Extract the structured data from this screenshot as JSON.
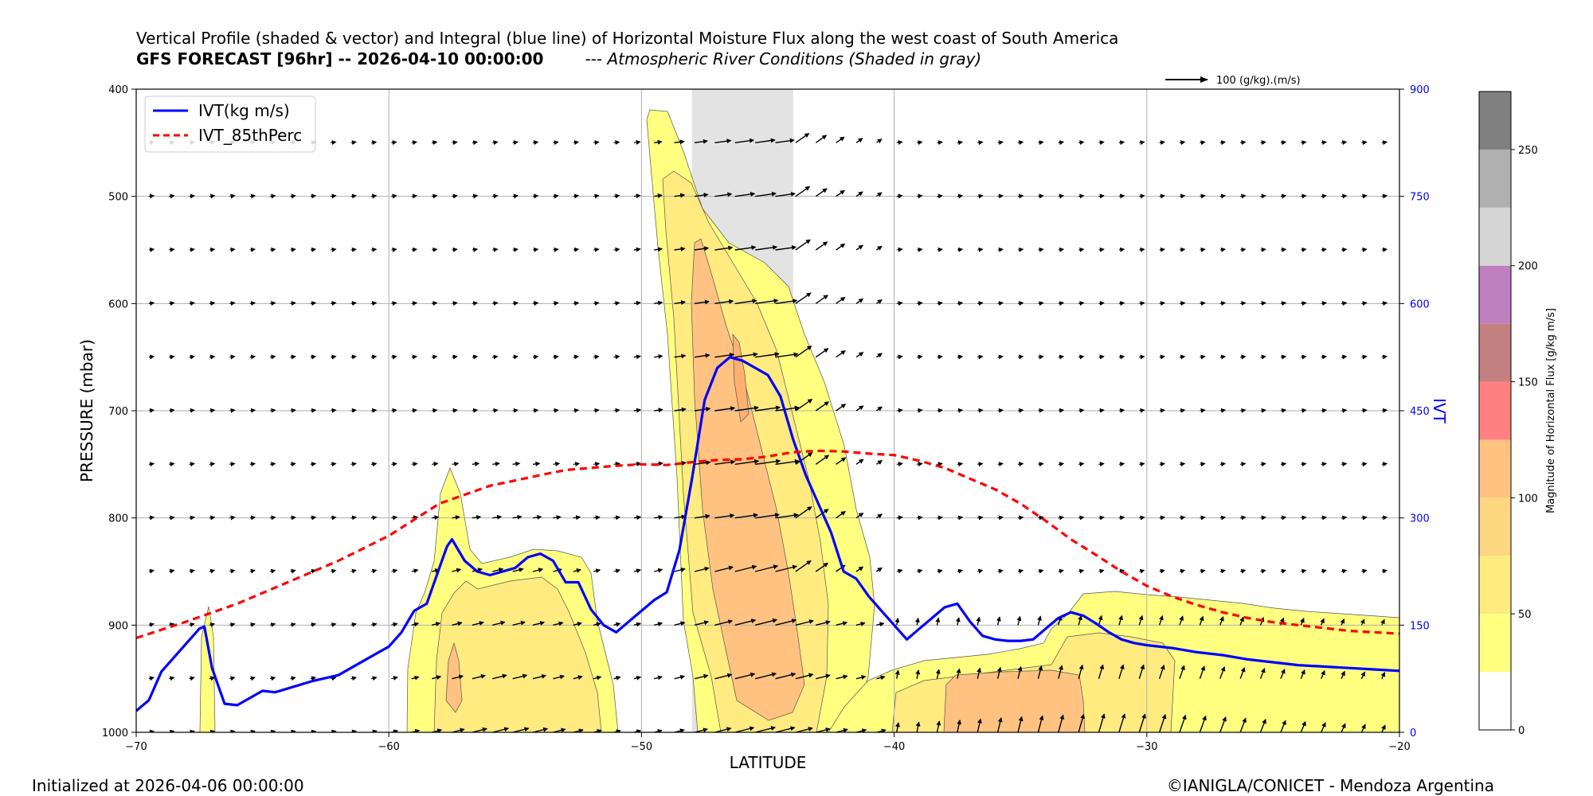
{
  "header": {
    "title_line1": "Vertical Profile (shaded & vector) and Integral (blue line) of Horizontal Moisture Flux along the west coast of South America",
    "forecast_label": "GFS FORECAST [96hr] -- 2026-04-10 00:00:00",
    "ar_note": "--- Atmospheric River Conditions (Shaded in gray)"
  },
  "footer": {
    "initialized": "Initialized at 2026-04-06 00:00:00",
    "credit": "©IANIGLA/CONICET - Mendoza Argentina"
  },
  "chart_data": {
    "type": "line",
    "xlabel": "LATITUDE",
    "ylabel": "PRESSURE (mbar)",
    "y2label": "IVT",
    "xlim": [
      -70,
      -20
    ],
    "ylim": [
      1000,
      400
    ],
    "y2lim": [
      0,
      900
    ],
    "xticks": [
      -70,
      -60,
      -50,
      -40,
      -30,
      -20
    ],
    "yticks": [
      400,
      500,
      600,
      700,
      800,
      900,
      1000
    ],
    "y2ticks": [
      0,
      150,
      300,
      450,
      600,
      750,
      900
    ],
    "grid": true,
    "legend_position": "upper-left",
    "ar_band": [
      -48,
      -44
    ],
    "vector_key": "100 (g/kg).(m/s)",
    "colorbar": {
      "label": "Magnitude of Horizontal Flux [g/kg m/s]",
      "bounds": [
        0,
        25,
        50,
        75,
        100,
        125,
        150,
        175,
        200,
        225,
        250,
        275
      ],
      "colors": [
        "#ffffff",
        "#ffff80",
        "#ffeb80",
        "#ffd680",
        "#ffc280",
        "#ff8080",
        "#c48080",
        "#c080c0",
        "#d4d4d4",
        "#b0b0b0",
        "#808080"
      ],
      "ticks": [
        0,
        50,
        100,
        150,
        200,
        250
      ]
    },
    "series": [
      {
        "name": "IVT(kg m/s)",
        "color": "#0000ff",
        "style": "solid",
        "x": [
          -70,
          -69.5,
          -69,
          -68,
          -67.5,
          -67.3,
          -67,
          -66.5,
          -66,
          -65,
          -64.5,
          -63,
          -62,
          -61,
          -60.5,
          -60,
          -59.5,
          -59,
          -58.5,
          -58,
          -57.7,
          -57.5,
          -57,
          -56.5,
          -56,
          -55,
          -54.5,
          -54,
          -53.5,
          -53,
          -52.5,
          -52,
          -51.5,
          -51,
          -50.5,
          -50,
          -49.5,
          -49,
          -48.5,
          -48,
          -47.5,
          -47,
          -46.5,
          -46,
          -45.5,
          -45,
          -44.5,
          -44,
          -43.5,
          -43,
          -42.5,
          -42,
          -41.5,
          -41,
          -40.5,
          -40,
          -39.5,
          -39,
          -38.5,
          -38,
          -37.5,
          -37,
          -36.5,
          -36,
          -35.5,
          -35,
          -34.5,
          -34,
          -33.5,
          -33,
          -32.5,
          -32,
          -31.5,
          -31,
          -30.5,
          -30,
          -29,
          -28,
          -27,
          -26,
          -25,
          -24,
          -23,
          -22,
          -21,
          -20
        ],
        "values": [
          30,
          45,
          85,
          125,
          145,
          148,
          90,
          40,
          38,
          58,
          56,
          72,
          80,
          100,
          110,
          120,
          140,
          170,
          180,
          230,
          260,
          270,
          240,
          225,
          220,
          230,
          245,
          250,
          240,
          210,
          210,
          172,
          150,
          140,
          155,
          170,
          185,
          196,
          255,
          355,
          465,
          510,
          525,
          520,
          510,
          500,
          470,
          410,
          360,
          320,
          280,
          225,
          215,
          190,
          170,
          150,
          130,
          145,
          160,
          175,
          180,
          155,
          135,
          130,
          128,
          128,
          130,
          145,
          160,
          168,
          163,
          152,
          140,
          130,
          125,
          122,
          118,
          112,
          108,
          102,
          98,
          94,
          92,
          90,
          88,
          86
        ]
      },
      {
        "name": "IVT_85thPerc",
        "color": "#ff0000",
        "style": "dashed",
        "x": [
          -70,
          -68,
          -66,
          -64,
          -62,
          -60,
          -58,
          -56,
          -54,
          -53,
          -52,
          -51,
          -50,
          -49,
          -48,
          -47,
          -46,
          -45,
          -44,
          -43,
          -42,
          -41,
          -40,
          -39,
          -38,
          -37,
          -36,
          -35,
          -34,
          -33,
          -32,
          -31,
          -30,
          -29,
          -28,
          -27,
          -26,
          -25,
          -24,
          -23,
          -22,
          -21,
          -20
        ],
        "values": [
          132,
          155,
          180,
          210,
          240,
          275,
          320,
          345,
          360,
          367,
          370,
          373,
          375,
          374,
          378,
          381,
          382,
          386,
          392,
          394,
          393,
          390,
          388,
          380,
          370,
          355,
          340,
          320,
          296,
          270,
          248,
          225,
          205,
          190,
          178,
          168,
          160,
          154,
          150,
          146,
          142,
          140,
          138
        ]
      }
    ]
  }
}
